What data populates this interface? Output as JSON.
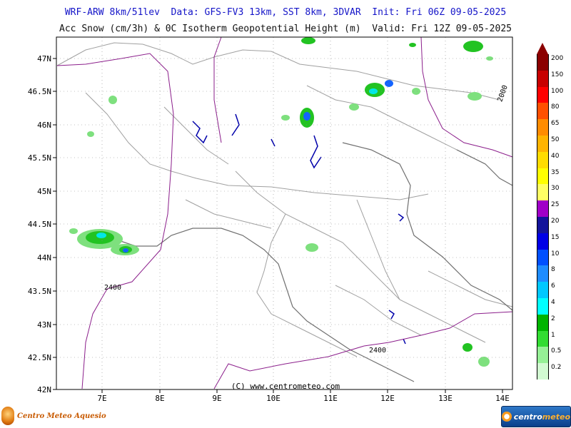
{
  "header": {
    "line1": "WRF-ARW 8km/51lev  Data: GFS-FV3 13km, SST 8km, 3DVAR  Init: Fri 06Z 09-05-2025",
    "line2": "Acc Snow (cm/3h) & 0C Isotherm Geopotential Height (m)  Valid: Fri 12Z 09-05-2025"
  },
  "map": {
    "lat_labels": [
      "47N",
      "46.5N",
      "46N",
      "45.5N",
      "45N",
      "44.5N",
      "44N",
      "43.5N",
      "43N",
      "42.5N",
      "42N"
    ],
    "lon_labels": [
      "7E",
      "8E",
      "9E",
      "10E",
      "11E",
      "12E",
      "13E",
      "14E"
    ],
    "copyright": "(C) www.centrometeo.com",
    "isotherm_labels": [
      "2000",
      "2400",
      "2400"
    ],
    "colors": {
      "frame": "#000000",
      "border": "#aaaaaa",
      "isotherm": "#8b1e8b",
      "lake": "#0000aa",
      "snow_light": "#7ee07e",
      "snow_mid": "#22c322",
      "snow_high": "#00e8e8",
      "snow_max": "#1464ff"
    }
  },
  "colorbar": {
    "labels": [
      "200",
      "150",
      "100",
      "80",
      "65",
      "50",
      "40",
      "35",
      "30",
      "25",
      "20",
      "15",
      "10",
      "8",
      "6",
      "4",
      "2",
      "1",
      "0.5",
      "0.2"
    ],
    "colors": [
      "#8b0000",
      "#c80000",
      "#ff0000",
      "#ff5000",
      "#ff8c00",
      "#ffb400",
      "#ffdc00",
      "#ffff00",
      "#ffff64",
      "#a000c8",
      "#14149b",
      "#0000e6",
      "#0050ff",
      "#1e8cff",
      "#00c8ff",
      "#00ffff",
      "#00b400",
      "#32dc32",
      "#96f096",
      "#d2fad2"
    ]
  },
  "logos": {
    "left": "Centro Meteo Aquesio",
    "right_a": "centro",
    "right_b": "meteo"
  }
}
